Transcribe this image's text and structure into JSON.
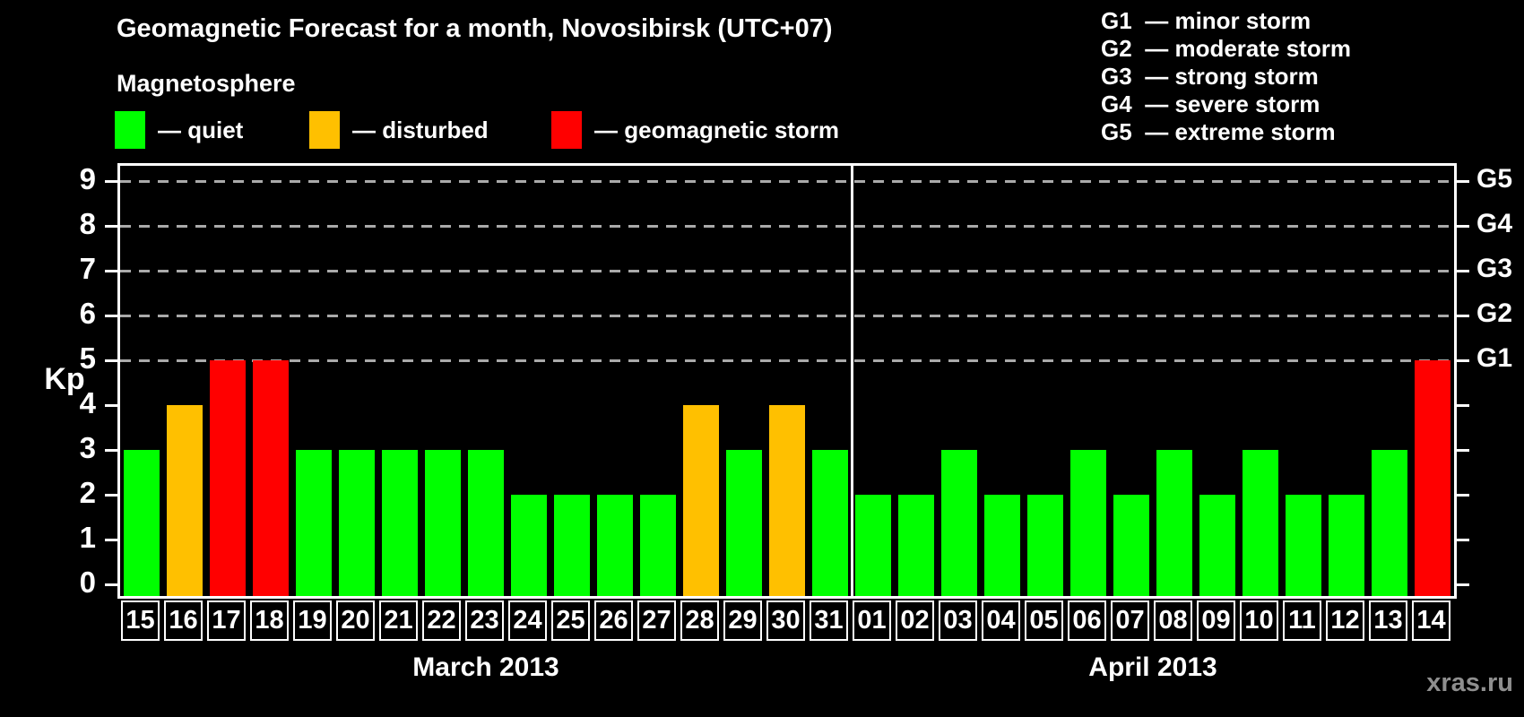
{
  "title": "Geomagnetic Forecast for a month, Novosibirsk (UTC+07)",
  "subtitle": "Magnetosphere",
  "legend": {
    "items": [
      {
        "name": "quiet",
        "label": "— quiet",
        "color": "#00FF00"
      },
      {
        "name": "disturbed",
        "label": "— disturbed",
        "color": "#FFC000"
      },
      {
        "name": "storm",
        "label": "— geomagnetic storm",
        "color": "#FF0000"
      }
    ]
  },
  "g_scale_legend": [
    {
      "level": "G1",
      "label": "— minor storm"
    },
    {
      "level": "G2",
      "label": "— moderate storm"
    },
    {
      "level": "G3",
      "label": "— strong storm"
    },
    {
      "level": "G4",
      "label": "— severe storm"
    },
    {
      "level": "G5",
      "label": "— extreme storm"
    }
  ],
  "axes": {
    "left_label": "Kp",
    "left_ticks": [
      "0",
      "1",
      "2",
      "3",
      "4",
      "5",
      "6",
      "7",
      "8",
      "9"
    ],
    "right_labels": {
      "5": "G1",
      "6": "G2",
      "7": "G3",
      "8": "G4",
      "9": "G5"
    }
  },
  "watermark": "xras.ru",
  "chart_data": {
    "type": "bar",
    "title": "Geomagnetic Forecast for a month, Novosibirsk (UTC+07)",
    "ylabel": "Kp",
    "ylim": [
      0,
      9
    ],
    "yticks": [
      0,
      1,
      2,
      3,
      4,
      5,
      6,
      7,
      8,
      9
    ],
    "gridlines_at": [
      5,
      6,
      7,
      8,
      9
    ],
    "grid": "dashed-horizontal",
    "legend_position": "top",
    "status_colors": {
      "quiet": "#00FF00",
      "disturbed": "#FFC000",
      "storm": "#FF0000"
    },
    "months": [
      {
        "label": "March 2013",
        "days": [
          {
            "day": "15",
            "kp": 3,
            "status": "quiet"
          },
          {
            "day": "16",
            "kp": 4,
            "status": "disturbed"
          },
          {
            "day": "17",
            "kp": 5,
            "status": "storm"
          },
          {
            "day": "18",
            "kp": 5,
            "status": "storm"
          },
          {
            "day": "19",
            "kp": 3,
            "status": "quiet"
          },
          {
            "day": "20",
            "kp": 3,
            "status": "quiet"
          },
          {
            "day": "21",
            "kp": 3,
            "status": "quiet"
          },
          {
            "day": "22",
            "kp": 3,
            "status": "quiet"
          },
          {
            "day": "23",
            "kp": 3,
            "status": "quiet"
          },
          {
            "day": "24",
            "kp": 2,
            "status": "quiet"
          },
          {
            "day": "25",
            "kp": 2,
            "status": "quiet"
          },
          {
            "day": "26",
            "kp": 2,
            "status": "quiet"
          },
          {
            "day": "27",
            "kp": 2,
            "status": "quiet"
          },
          {
            "day": "28",
            "kp": 4,
            "status": "disturbed"
          },
          {
            "day": "29",
            "kp": 3,
            "status": "quiet"
          },
          {
            "day": "30",
            "kp": 4,
            "status": "disturbed"
          },
          {
            "day": "31",
            "kp": 3,
            "status": "quiet"
          }
        ]
      },
      {
        "label": "April 2013",
        "days": [
          {
            "day": "01",
            "kp": 2,
            "status": "quiet"
          },
          {
            "day": "02",
            "kp": 2,
            "status": "quiet"
          },
          {
            "day": "03",
            "kp": 3,
            "status": "quiet"
          },
          {
            "day": "04",
            "kp": 2,
            "status": "quiet"
          },
          {
            "day": "05",
            "kp": 2,
            "status": "quiet"
          },
          {
            "day": "06",
            "kp": 3,
            "status": "quiet"
          },
          {
            "day": "07",
            "kp": 2,
            "status": "quiet"
          },
          {
            "day": "08",
            "kp": 3,
            "status": "quiet"
          },
          {
            "day": "09",
            "kp": 2,
            "status": "quiet"
          },
          {
            "day": "10",
            "kp": 3,
            "status": "quiet"
          },
          {
            "day": "11",
            "kp": 2,
            "status": "quiet"
          },
          {
            "day": "12",
            "kp": 2,
            "status": "quiet"
          },
          {
            "day": "13",
            "kp": 3,
            "status": "quiet"
          },
          {
            "day": "14",
            "kp": 5,
            "status": "storm"
          }
        ]
      }
    ]
  }
}
